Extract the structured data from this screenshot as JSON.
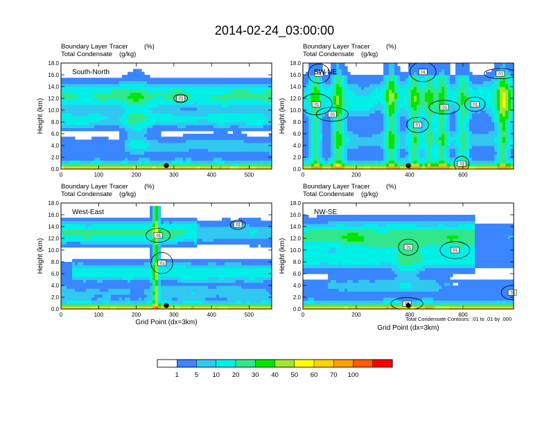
{
  "chart_data": {
    "type": "heatmap",
    "title": "2014-02-24_03:00:00",
    "colorbar": {
      "levels": [
        "1",
        "5",
        "10",
        "20",
        "30",
        "40",
        "50",
        "60",
        "70",
        "100"
      ],
      "colors": [
        "#ffffff",
        "#3a86ff",
        "#31c8f0",
        "#00f0e8",
        "#32e68c",
        "#00e600",
        "#a0e632",
        "#ffff00",
        "#ffd200",
        "#ffa000",
        "#ff5a00",
        "#ff0000"
      ]
    },
    "note": "Total Condensate Contours: .01 to .01 by .000",
    "panels": [
      {
        "name": "South-North",
        "label": "South-North",
        "subtitle_left_1": "Boundary Layer Tracer",
        "subtitle_unit_1": "(%)",
        "subtitle_left_2": "Total Condensate",
        "subtitle_unit_2": "(g/kg)",
        "ylabel": "Height (km)",
        "xlabel": "",
        "xlim": [
          0,
          560
        ],
        "ylim": [
          0,
          18
        ],
        "xticks": [
          "0",
          "100",
          "200",
          "300",
          "400",
          "500"
        ],
        "yticks": [
          "0.0",
          "2.0",
          "4.0",
          "6.0",
          "8.0",
          "10.0",
          "12.0",
          "14.0",
          "16.0",
          "18.0"
        ],
        "marker_x": 280,
        "contour_labels": [
          {
            "text": ".01",
            "x": 318,
            "y": 12.0
          }
        ]
      },
      {
        "name": "SW-NE",
        "label": "SW-NE",
        "subtitle_left_1": "Boundary Layer Tracer",
        "subtitle_unit_1": "(%)",
        "subtitle_left_2": "Total Condensate",
        "subtitle_unit_2": "(g/kg)",
        "ylabel": "Height (km)",
        "xlabel": "",
        "xlim": [
          0,
          790
        ],
        "ylim": [
          0,
          18
        ],
        "xticks": [
          "0",
          "200",
          "400",
          "600"
        ],
        "yticks": [
          "0.0",
          "2.0",
          "4.0",
          "6.0",
          "8.0",
          "10.0",
          "12.0",
          "14.0",
          "16.0",
          "18.0"
        ],
        "marker_x": 395,
        "contour_labels": [
          {
            "text": ".01",
            "x": 60,
            "y": 16.2
          },
          {
            "text": ".01",
            "x": 50,
            "y": 11.0
          },
          {
            "text": ".01",
            "x": 110,
            "y": 9.3
          },
          {
            "text": ".01",
            "x": 450,
            "y": 16.5
          },
          {
            "text": ".01",
            "x": 430,
            "y": 7.5
          },
          {
            "text": ".01",
            "x": 530,
            "y": 10.5
          },
          {
            "text": ".01",
            "x": 645,
            "y": 11.0
          },
          {
            "text": ".01",
            "x": 740,
            "y": 16.2
          },
          {
            "text": ".01",
            "x": 595,
            "y": 0.9
          }
        ]
      },
      {
        "name": "West-East",
        "label": "West-East",
        "subtitle_left_1": "Boundary Layer Tracer",
        "subtitle_unit_1": "(%)",
        "subtitle_left_2": "Total Condensate",
        "subtitle_unit_2": "(g/kg)",
        "ylabel": "Height (km)",
        "xlabel": "Grid Point (dx=3km)",
        "xlim": [
          0,
          560
        ],
        "ylim": [
          0,
          18
        ],
        "xticks": [
          "0",
          "100",
          "200",
          "300",
          "400",
          "500"
        ],
        "yticks": [
          "0.0",
          "2.0",
          "4.0",
          "6.0",
          "8.0",
          "10.0",
          "12.0",
          "14.0",
          "16.0",
          "18.0"
        ],
        "marker_x": 280,
        "contour_labels": [
          {
            "text": ".01",
            "x": 258,
            "y": 12.5
          },
          {
            "text": ".01",
            "x": 268,
            "y": 7.8
          },
          {
            "text": ".01",
            "x": 470,
            "y": 14.3
          }
        ]
      },
      {
        "name": "NW-SE",
        "label": "NW-SE",
        "subtitle_left_1": "Boundary Layer Tracer",
        "subtitle_unit_1": "(%)",
        "subtitle_left_2": "Total Condensate",
        "subtitle_unit_2": "(g/kg)",
        "ylabel": "Height (km)",
        "xlabel": "Grid Point (dx=3km)",
        "xlim": [
          0,
          790
        ],
        "ylim": [
          0,
          18
        ],
        "xticks": [
          "0",
          "200",
          "400",
          "600"
        ],
        "yticks": [
          "0.0",
          "2.0",
          "4.0",
          "6.0",
          "8.0",
          "10.0",
          "12.0",
          "14.0",
          "16.0",
          "18.0"
        ],
        "marker_x": 395,
        "contour_labels": [
          {
            "text": ".01",
            "x": 395,
            "y": 10.5
          },
          {
            "text": ".01",
            "x": 570,
            "y": 10.0
          },
          {
            "text": ".01",
            "x": 390,
            "y": 0.9
          },
          {
            "text": ".01",
            "x": 785,
            "y": 2.8
          }
        ]
      }
    ]
  }
}
